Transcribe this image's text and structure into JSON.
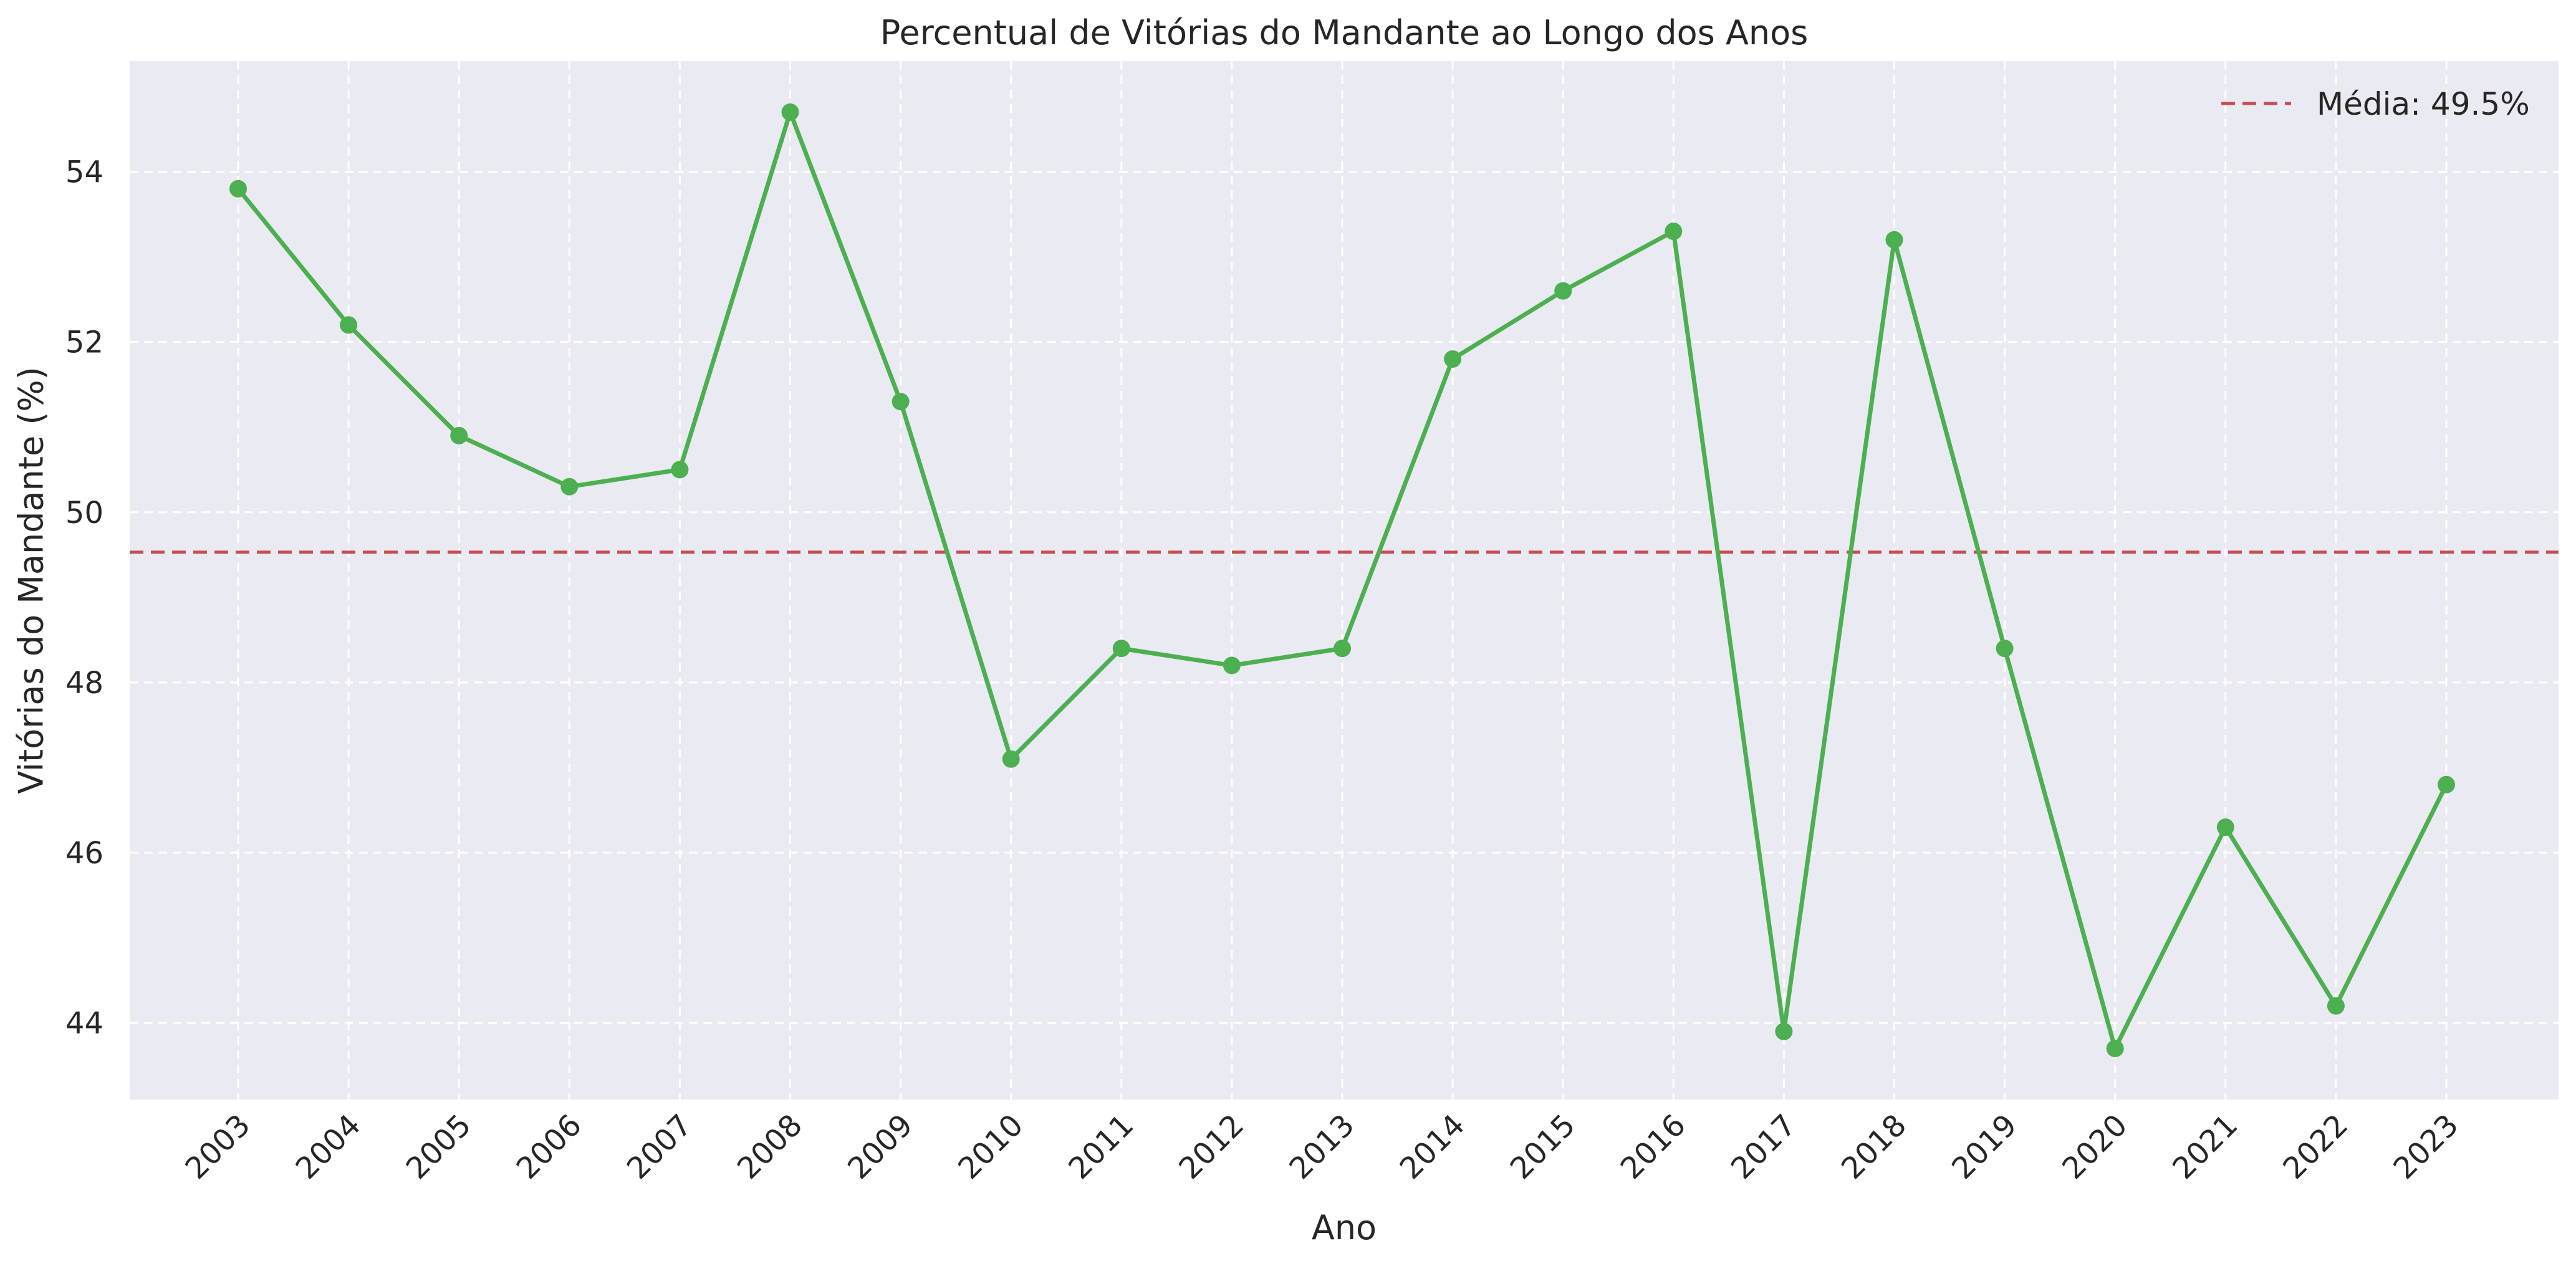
{
  "chart_data": {
    "type": "line",
    "title": "Percentual de Vitórias do Mandante ao Longo dos Anos",
    "xlabel": "Ano",
    "ylabel": "Vitórias do Mandante (%)",
    "categories": [
      "2003",
      "2004",
      "2005",
      "2006",
      "2007",
      "2008",
      "2009",
      "2010",
      "2011",
      "2012",
      "2013",
      "2014",
      "2015",
      "2016",
      "2017",
      "2018",
      "2019",
      "2020",
      "2021",
      "2022",
      "2023"
    ],
    "series": [
      {
        "values": [
          53.8,
          52.2,
          50.9,
          50.3,
          50.5,
          54.7,
          51.3,
          47.1,
          48.4,
          48.2,
          48.4,
          51.8,
          52.6,
          53.3,
          43.9,
          53.2,
          48.4,
          43.7,
          46.3,
          44.2,
          46.8
        ],
        "color": "#4caf50",
        "marker": "circle"
      }
    ],
    "reference_line": {
      "value": 49.53,
      "label": "Média: 49.5%",
      "color": "#c44e52",
      "style": "dashed"
    },
    "ylim": [
      43.1,
      55.3
    ],
    "yticks": [
      44,
      46,
      48,
      50,
      52,
      54
    ],
    "grid": true,
    "legend_position": "top-right",
    "background": "#eaeaf2",
    "xtick_rotation": -45
  }
}
